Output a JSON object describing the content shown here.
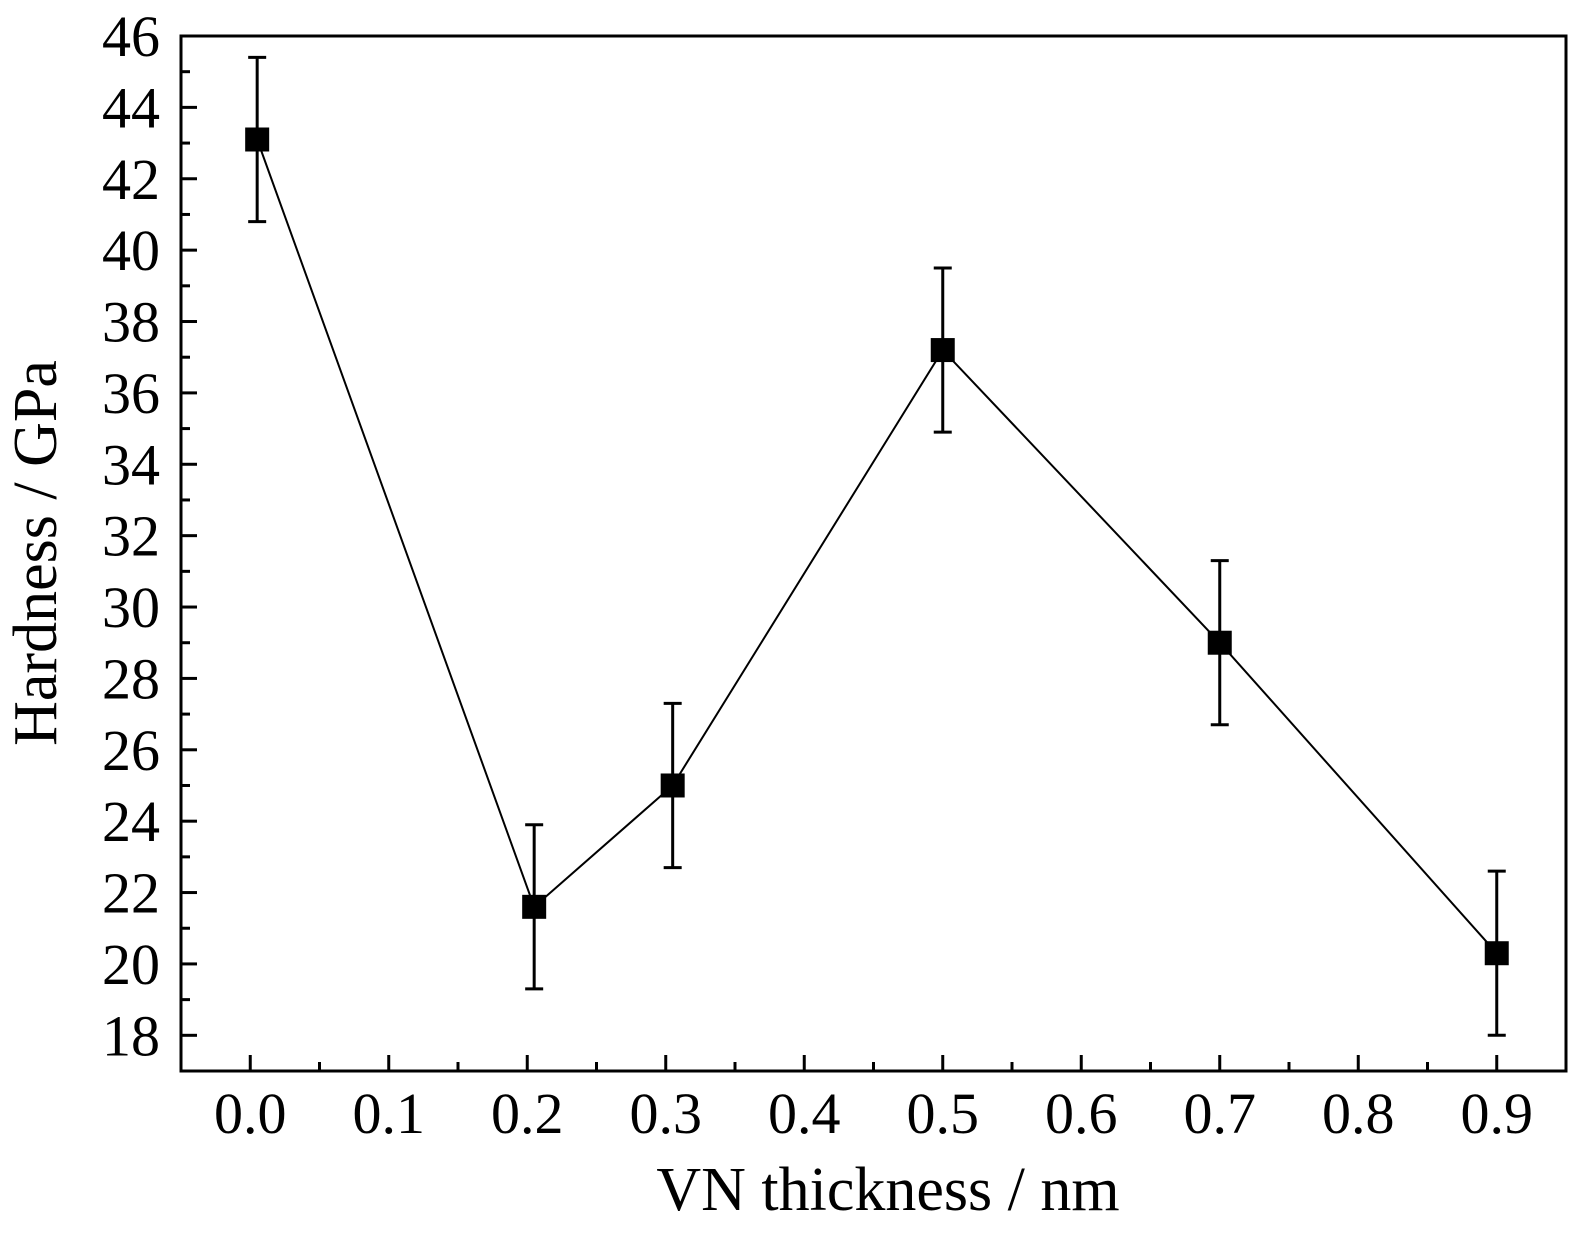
{
  "chart_data": {
    "type": "line",
    "title": "",
    "xlabel": "VN thickness / nm",
    "ylabel": "Hardness / GPa",
    "xlim": [
      -0.05,
      0.95
    ],
    "ylim": [
      17,
      46
    ],
    "x_ticks": [
      0.0,
      0.1,
      0.2,
      0.3,
      0.4,
      0.5,
      0.6,
      0.7,
      0.8,
      0.9
    ],
    "x_tick_labels": [
      "0.0",
      "0.1",
      "0.2",
      "0.3",
      "0.4",
      "0.5",
      "0.6",
      "0.7",
      "0.8",
      "0.9"
    ],
    "y_ticks": [
      18,
      20,
      22,
      24,
      26,
      28,
      30,
      32,
      34,
      36,
      38,
      40,
      42,
      44,
      46
    ],
    "y_tick_labels": [
      "18",
      "20",
      "22",
      "24",
      "26",
      "28",
      "30",
      "32",
      "34",
      "36",
      "38",
      "40",
      "42",
      "44",
      "46"
    ],
    "grid": false,
    "legend": "none",
    "series": [
      {
        "x": [
          0.005,
          0.205,
          0.305,
          0.5,
          0.7,
          0.9
        ],
        "y": [
          43.1,
          21.6,
          25.0,
          37.2,
          29.0,
          20.3
        ],
        "error": [
          2.3,
          2.3,
          2.3,
          2.3,
          2.3,
          2.3
        ],
        "marker": "square",
        "color": "#000000"
      }
    ]
  }
}
